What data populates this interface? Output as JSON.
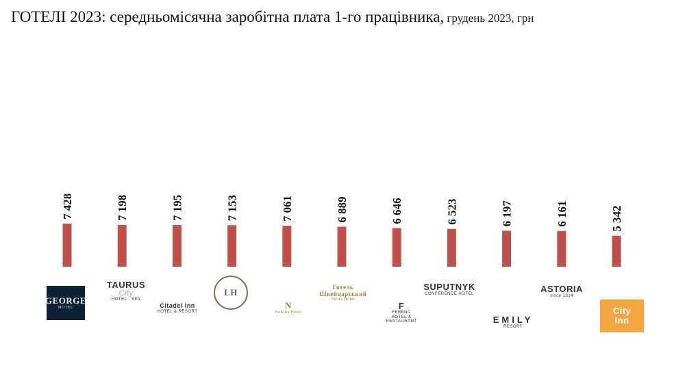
{
  "title": {
    "main": "ГОТЕЛІ 2023: середньомісячна заробітна плата 1-го працівника,",
    "sub": " грудень 2023, грн"
  },
  "colors": {
    "bar": "#c0504d",
    "text": "#111111"
  },
  "chart_data": {
    "type": "bar",
    "categories": [
      "GEORGE HOTEL",
      "TAURUS City",
      "Citadel Inn",
      "LH",
      "Nobilis Hotel",
      "Готель Швейцарський Swiss Hotel",
      "FERENC",
      "SUPUTNYK",
      "EMILY",
      "ASTORIA",
      "City Inn"
    ],
    "values": [
      7428,
      7198,
      7195,
      7153,
      7061,
      6889,
      6646,
      6523,
      6197,
      6161,
      5342
    ],
    "data_labels": [
      "7 428",
      "7 198",
      "7 195",
      "7 153",
      "7 061",
      "6 889",
      "6 646",
      "6 523",
      "6 197",
      "6 161",
      "5 342"
    ],
    "title": "ГОТЕЛІ 2023: середньомісячна заробітна плата 1-го працівника, грудень 2023, грн",
    "xlabel": "",
    "ylabel": "",
    "ylim": [
      0,
      7428
    ],
    "grid": false,
    "legend": "none"
  },
  "logos": [
    {
      "lines": [
        "GEORGE",
        "HOTEL"
      ],
      "style": "dark"
    },
    {
      "lines": [
        "TAURUS",
        "City",
        "HOTEL · SPA"
      ],
      "style": "plain"
    },
    {
      "lines": [
        "Citadel Inn",
        "HOTEL & RESORT"
      ],
      "style": "plain"
    },
    {
      "lines": [
        "LH"
      ],
      "style": "ring"
    },
    {
      "lines": [
        "N",
        "Nobilis Hotel"
      ],
      "style": "gold"
    },
    {
      "lines": [
        "Готель Швейцарський",
        "Swiss Hotel"
      ],
      "style": "gold"
    },
    {
      "lines": [
        "F",
        "FERENC",
        "HOTEL & RESTAURANT"
      ],
      "style": "plain"
    },
    {
      "lines": [
        "SUPUTNYK",
        "CONFERENCE HOTEL"
      ],
      "style": "plain"
    },
    {
      "lines": [
        "EMILY",
        "RESORT"
      ],
      "style": "plain"
    },
    {
      "lines": [
        "ASTORIA",
        "since 1914"
      ],
      "style": "plain"
    },
    {
      "lines": [
        "City",
        "Inn"
      ],
      "style": "orange"
    }
  ]
}
